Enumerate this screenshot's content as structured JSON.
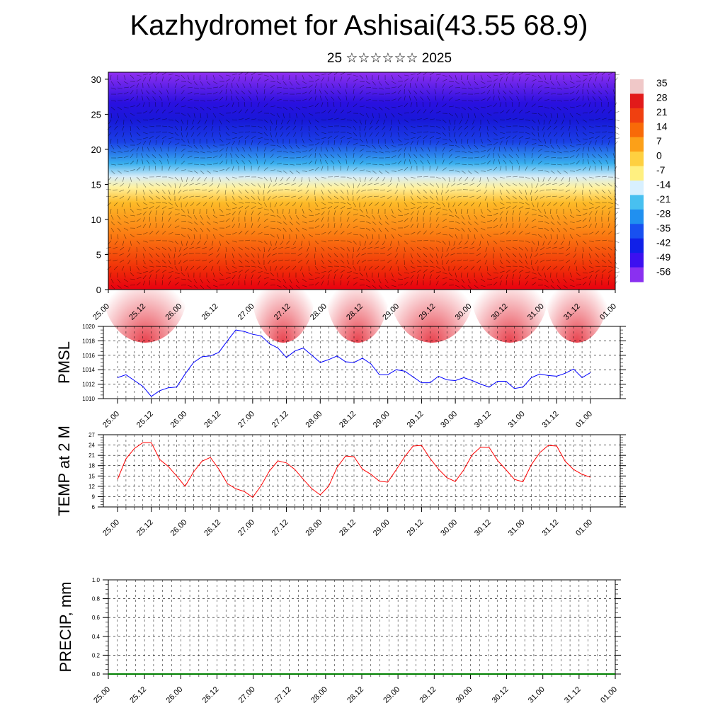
{
  "title": "Kazhydromet for Ashisai(43.55 68.9)",
  "subtitle": "25 ☆☆☆☆☆☆ 2025",
  "colors": {
    "pmsl_line": "#0000ff",
    "temp_line": "#ff0000",
    "precip_line": "#008000"
  },
  "chart_data": [
    {
      "type": "heatmap",
      "name": "upper-air temperature and wind",
      "ylim": [
        0,
        31
      ],
      "yticks": [
        0,
        5,
        10,
        15,
        20,
        25,
        30
      ],
      "xticks": [
        "25.00",
        "25.12",
        "26.00",
        "26.12",
        "27.00",
        "27.12",
        "28.00",
        "28.12",
        "29.00",
        "29.12",
        "30.00",
        "30.12",
        "31.00",
        "31.12",
        "01.00"
      ],
      "colorbar_labels": [
        "35",
        "28",
        "21",
        "14",
        "7",
        "0",
        "-7",
        "-14",
        "-21",
        "-28",
        "-35",
        "-42",
        "-49",
        "-56"
      ],
      "colorbar_colors": [
        "#f0c8c8",
        "#e21a1a",
        "#f04010",
        "#f86a08",
        "#fca018",
        "#fed040",
        "#fff080",
        "#d8f0ff",
        "#48c0f0",
        "#2090f0",
        "#1850f0",
        "#1020e8",
        "#3c10f0",
        "#8a30f0"
      ],
      "wind_barbs": true
    },
    {
      "type": "line",
      "ylabel": "PMSL",
      "ylim": [
        1010,
        1020
      ],
      "yticks": [
        1010,
        1012,
        1014,
        1016,
        1018,
        1020
      ],
      "xticks": [
        "25.00",
        "25.12",
        "26.00",
        "26.12",
        "27.00",
        "27.12",
        "28.00",
        "28.12",
        "29.00",
        "29.12",
        "30.00",
        "30.12",
        "31.00",
        "31.12",
        "01.00"
      ],
      "x_hours": [
        0,
        3,
        6,
        9,
        12,
        15,
        18,
        21,
        24,
        27,
        30,
        33,
        36,
        39,
        42,
        45,
        48,
        51,
        54,
        57,
        60,
        63,
        66,
        69,
        72,
        75,
        78,
        81,
        84,
        87,
        90,
        93,
        96,
        99,
        102,
        105,
        108,
        111,
        114,
        117,
        120,
        123,
        126,
        129,
        132,
        135,
        138,
        141,
        144,
        147,
        150,
        153,
        156,
        159,
        162,
        165,
        168
      ],
      "values": [
        1012.9,
        1013.3,
        1012.5,
        1011.7,
        1010.3,
        1011.1,
        1011.5,
        1011.6,
        1013.4,
        1015.0,
        1015.8,
        1015.9,
        1016.4,
        1018.0,
        1019.5,
        1019.3,
        1018.9,
        1018.7,
        1017.6,
        1017.0,
        1015.7,
        1016.6,
        1017.0,
        1016.0,
        1015.0,
        1015.4,
        1015.9,
        1015.1,
        1015.0,
        1015.6,
        1014.8,
        1013.3,
        1013.3,
        1014.0,
        1013.8,
        1013.0,
        1012.2,
        1012.2,
        1013.1,
        1012.6,
        1012.5,
        1012.9,
        1012.5,
        1012.0,
        1011.6,
        1012.4,
        1012.4,
        1011.4,
        1011.6,
        1012.9,
        1013.4,
        1013.2,
        1013.1,
        1013.5,
        1014.1,
        1012.9,
        1013.6
      ]
    },
    {
      "type": "line",
      "ylabel": "TEMP at 2 M",
      "ylim": [
        6,
        27
      ],
      "yticks": [
        6,
        9,
        12,
        15,
        18,
        21,
        24,
        27
      ],
      "xticks": [
        "25.00",
        "25.12",
        "26.00",
        "26.12",
        "27.00",
        "27.12",
        "28.00",
        "28.12",
        "29.00",
        "29.12",
        "30.00",
        "30.12",
        "31.00",
        "31.12",
        "01.00"
      ],
      "x_hours": [
        0,
        3,
        6,
        9,
        12,
        15,
        18,
        21,
        24,
        27,
        30,
        33,
        36,
        39,
        42,
        45,
        48,
        51,
        54,
        57,
        60,
        63,
        66,
        69,
        72,
        75,
        78,
        81,
        84,
        87,
        90,
        93,
        96,
        99,
        102,
        105,
        108,
        111,
        114,
        117,
        120,
        123,
        126,
        129,
        132,
        135,
        138,
        141,
        144,
        147,
        150,
        153,
        156,
        159,
        162,
        165,
        168
      ],
      "values": [
        14.0,
        20.0,
        23.0,
        24.7,
        24.7,
        19.8,
        17.8,
        15.0,
        12.0,
        16.2,
        19.3,
        20.4,
        17.0,
        12.8,
        11.3,
        10.5,
        8.8,
        12.2,
        16.5,
        19.4,
        18.8,
        16.9,
        14.0,
        11.3,
        9.5,
        12.0,
        17.5,
        20.8,
        20.6,
        17.0,
        15.5,
        13.5,
        13.2,
        16.8,
        20.6,
        23.7,
        23.9,
        20.1,
        17.0,
        14.5,
        13.4,
        16.8,
        21.2,
        23.4,
        23.3,
        19.5,
        16.8,
        14.0,
        13.3,
        18.3,
        21.8,
        23.9,
        23.7,
        19.3,
        16.9,
        15.5,
        14.6
      ]
    },
    {
      "type": "line",
      "ylabel": "PRECIP, mm",
      "ylim": [
        0,
        1
      ],
      "yticks": [
        "0.0",
        "0.2",
        "0.4",
        "0.6",
        "0.8",
        "1.0"
      ],
      "xticks": [
        "25.00",
        "25.12",
        "26.00",
        "26.12",
        "27.00",
        "27.12",
        "28.00",
        "28.12",
        "29.00",
        "29.12",
        "30.00",
        "30.12",
        "31.00",
        "31.12",
        "01.00"
      ],
      "values": [
        0,
        0,
        0,
        0,
        0,
        0,
        0,
        0,
        0,
        0,
        0,
        0,
        0,
        0,
        0,
        0,
        0,
        0,
        0,
        0,
        0,
        0,
        0,
        0,
        0,
        0,
        0,
        0,
        0,
        0,
        0,
        0,
        0,
        0,
        0,
        0,
        0,
        0,
        0,
        0,
        0,
        0,
        0,
        0,
        0,
        0,
        0,
        0,
        0,
        0,
        0,
        0,
        0,
        0,
        0,
        0,
        0
      ]
    }
  ]
}
